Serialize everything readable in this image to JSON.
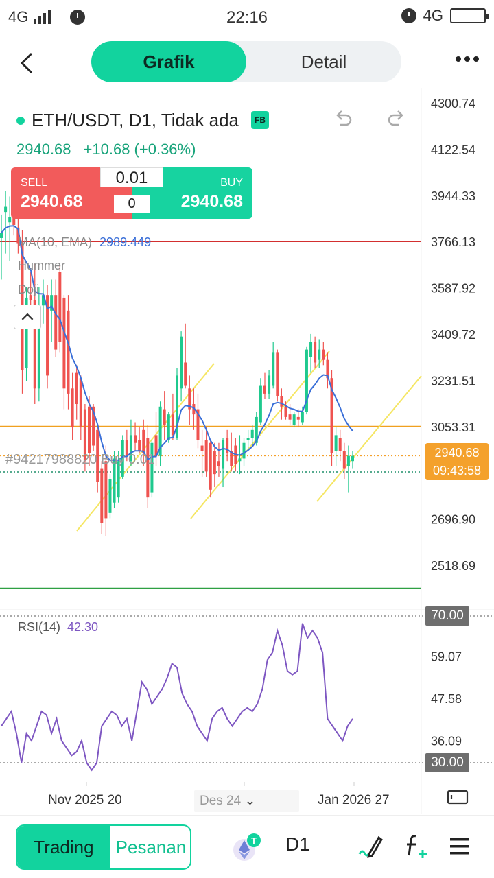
{
  "status_bar": {
    "network_left": "4G",
    "time": "22:16",
    "network_right": "4G"
  },
  "nav": {
    "tab_active": "Grafik",
    "tab_inactive": "Detail"
  },
  "symbol": {
    "title": "ETH/USDT, D1, Tidak ada",
    "badge": "FB",
    "price": "2940.68",
    "change": "+10.68 (+0.36%)"
  },
  "trade_panel": {
    "sell_label": "SELL",
    "sell_price": "2940.68",
    "buy_label": "BUY",
    "buy_price": "2940.68",
    "lot": "0.01",
    "spread": "0"
  },
  "indicators": {
    "ma_label": "MA(10, EMA)",
    "ma_value": "2989.449",
    "pattern1": "Hummer",
    "pattern2": "Doji"
  },
  "order_line": {
    "text": "#94217988820 Buy 0.01"
  },
  "price_axis": [
    "4300.74",
    "4122.54",
    "3944.33",
    "3766.13",
    "3587.92",
    "3409.72",
    "3231.51",
    "3053.31",
    "2696.90",
    "2518.69"
  ],
  "current_price_label": {
    "price": "2940.68",
    "countdown": "09:43:58"
  },
  "rsi": {
    "label": "RSI(14)",
    "value": "42.30",
    "axis": [
      "59.07",
      "47.58",
      "36.09"
    ],
    "upper": "70.00",
    "lower": "30.00"
  },
  "x_axis": {
    "label1": "Nov 2025 20",
    "label2": "Des 24",
    "label3": "Jan 2026 27"
  },
  "bottom_bar": {
    "tab_trading": "Trading",
    "tab_orders": "Pesanan",
    "timeframe": "D1"
  },
  "colors": {
    "accent": "#12d39e",
    "sell": "#f25b5b",
    "buy": "#17d3a0",
    "bull": "#1fc98e",
    "bear": "#ef5350",
    "ma": "#3a6fd8",
    "rsi": "#7e57c2",
    "price_tag": "#f4a12c",
    "resistance": "#f0a020",
    "red_line": "#d32f2f",
    "green_line": "#2ea043",
    "channel": "#f5e663"
  },
  "chart_data": {
    "type": "candlestick",
    "instrument": "ETH/USDT",
    "timeframe": "D1",
    "price_range": [
      2430,
      4340
    ],
    "horizontal_lines": [
      3766.13,
      3053.31,
      2940.68,
      2430
    ],
    "candles": [
      {
        "o": 3780,
        "h": 3870,
        "l": 3620,
        "c": 3800
      },
      {
        "o": 3880,
        "h": 3960,
        "l": 3720,
        "c": 3900
      },
      {
        "o": 3840,
        "h": 3940,
        "l": 3690,
        "c": 3860
      },
      {
        "o": 3860,
        "h": 3930,
        "l": 3790,
        "c": 3830
      },
      {
        "o": 3820,
        "h": 3880,
        "l": 3720,
        "c": 3760
      },
      {
        "o": 3760,
        "h": 3810,
        "l": 3180,
        "c": 3270
      },
      {
        "o": 3280,
        "h": 3590,
        "l": 3230,
        "c": 3550
      },
      {
        "o": 3560,
        "h": 3650,
        "l": 3520,
        "c": 3540
      },
      {
        "o": 3540,
        "h": 3680,
        "l": 3140,
        "c": 3200
      },
      {
        "o": 3200,
        "h": 3590,
        "l": 3150,
        "c": 3520
      },
      {
        "o": 3520,
        "h": 3620,
        "l": 3450,
        "c": 3560
      },
      {
        "o": 3560,
        "h": 3600,
        "l": 3200,
        "c": 3250
      },
      {
        "o": 3500,
        "h": 3620,
        "l": 3380,
        "c": 3560
      },
      {
        "o": 3560,
        "h": 3620,
        "l": 3320,
        "c": 3350
      },
      {
        "o": 3650,
        "h": 3680,
        "l": 3340,
        "c": 3380
      },
      {
        "o": 3550,
        "h": 3560,
        "l": 3120,
        "c": 3200
      },
      {
        "o": 3500,
        "h": 3560,
        "l": 3120,
        "c": 3180
      },
      {
        "o": 3200,
        "h": 3260,
        "l": 3000,
        "c": 3050
      },
      {
        "o": 3260,
        "h": 3290,
        "l": 3080,
        "c": 3140
      },
      {
        "o": 3240,
        "h": 3250,
        "l": 3000,
        "c": 3050
      },
      {
        "o": 3120,
        "h": 3140,
        "l": 2880,
        "c": 2920
      },
      {
        "o": 3130,
        "h": 3170,
        "l": 2900,
        "c": 2950
      },
      {
        "o": 3130,
        "h": 3140,
        "l": 2960,
        "c": 2980
      },
      {
        "o": 3040,
        "h": 3060,
        "l": 2800,
        "c": 2840
      },
      {
        "o": 2890,
        "h": 2920,
        "l": 2640,
        "c": 2680
      },
      {
        "o": 2920,
        "h": 2980,
        "l": 2630,
        "c": 2700
      },
      {
        "o": 2720,
        "h": 2870,
        "l": 2700,
        "c": 2850
      },
      {
        "o": 2760,
        "h": 2960,
        "l": 2740,
        "c": 2930
      },
      {
        "o": 2780,
        "h": 2960,
        "l": 2760,
        "c": 2920
      },
      {
        "o": 2860,
        "h": 3020,
        "l": 2850,
        "c": 3000
      },
      {
        "o": 3000,
        "h": 3040,
        "l": 2920,
        "c": 2940
      },
      {
        "o": 2920,
        "h": 3080,
        "l": 2900,
        "c": 3020
      },
      {
        "o": 3020,
        "h": 3070,
        "l": 2960,
        "c": 2990
      },
      {
        "o": 3000,
        "h": 3050,
        "l": 2950,
        "c": 2960
      },
      {
        "o": 3040,
        "h": 3080,
        "l": 2900,
        "c": 2950
      },
      {
        "o": 3010,
        "h": 3060,
        "l": 2740,
        "c": 2780
      },
      {
        "o": 2800,
        "h": 3000,
        "l": 2780,
        "c": 2990
      },
      {
        "o": 3020,
        "h": 3110,
        "l": 2900,
        "c": 2940
      },
      {
        "o": 2940,
        "h": 3150,
        "l": 2900,
        "c": 3130
      },
      {
        "o": 3120,
        "h": 3190,
        "l": 3000,
        "c": 3060
      },
      {
        "o": 3000,
        "h": 3110,
        "l": 2990,
        "c": 3100
      },
      {
        "o": 3100,
        "h": 3180,
        "l": 3000,
        "c": 3020
      },
      {
        "o": 3010,
        "h": 3280,
        "l": 3000,
        "c": 3250
      },
      {
        "o": 3200,
        "h": 3420,
        "l": 3150,
        "c": 3400
      },
      {
        "o": 3300,
        "h": 3450,
        "l": 3200,
        "c": 3210
      },
      {
        "o": 3200,
        "h": 3250,
        "l": 3060,
        "c": 3120
      },
      {
        "o": 3140,
        "h": 3200,
        "l": 3040,
        "c": 3100
      },
      {
        "o": 3120,
        "h": 3180,
        "l": 2970,
        "c": 3000
      },
      {
        "o": 2980,
        "h": 3040,
        "l": 2860,
        "c": 2960
      },
      {
        "o": 3000,
        "h": 3050,
        "l": 2860,
        "c": 2880
      },
      {
        "o": 2990,
        "h": 3000,
        "l": 2780,
        "c": 2810
      },
      {
        "o": 2960,
        "h": 2990,
        "l": 2820,
        "c": 2870
      },
      {
        "o": 2920,
        "h": 2990,
        "l": 2860,
        "c": 2900
      },
      {
        "o": 2890,
        "h": 3010,
        "l": 2820,
        "c": 3000
      },
      {
        "o": 3010,
        "h": 3040,
        "l": 2920,
        "c": 2950
      },
      {
        "o": 2960,
        "h": 3030,
        "l": 2880,
        "c": 2900
      },
      {
        "o": 2980,
        "h": 3010,
        "l": 2880,
        "c": 2910
      },
      {
        "o": 2920,
        "h": 3020,
        "l": 2870,
        "c": 2930
      },
      {
        "o": 2930,
        "h": 3010,
        "l": 2900,
        "c": 2990
      },
      {
        "o": 3000,
        "h": 3040,
        "l": 2960,
        "c": 3010
      },
      {
        "o": 3010,
        "h": 3060,
        "l": 2980,
        "c": 3040
      },
      {
        "o": 2990,
        "h": 3110,
        "l": 2980,
        "c": 3090
      },
      {
        "o": 3070,
        "h": 3240,
        "l": 3060,
        "c": 3210
      },
      {
        "o": 3210,
        "h": 3260,
        "l": 3160,
        "c": 3180
      },
      {
        "o": 3180,
        "h": 3270,
        "l": 3160,
        "c": 3250
      },
      {
        "o": 3210,
        "h": 3380,
        "l": 3200,
        "c": 3340
      },
      {
        "o": 3340,
        "h": 3350,
        "l": 3150,
        "c": 3170
      },
      {
        "o": 3170,
        "h": 3200,
        "l": 3080,
        "c": 3130
      },
      {
        "o": 3130,
        "h": 3150,
        "l": 3080,
        "c": 3090
      },
      {
        "o": 3100,
        "h": 3140,
        "l": 3060,
        "c": 3080
      },
      {
        "o": 3060,
        "h": 3110,
        "l": 3050,
        "c": 3100
      },
      {
        "o": 3090,
        "h": 3120,
        "l": 3050,
        "c": 3080
      },
      {
        "o": 3070,
        "h": 3130,
        "l": 3060,
        "c": 3110
      },
      {
        "o": 3110,
        "h": 3360,
        "l": 3100,
        "c": 3350
      },
      {
        "o": 3320,
        "h": 3410,
        "l": 3260,
        "c": 3380
      },
      {
        "o": 3380,
        "h": 3400,
        "l": 3280,
        "c": 3300
      },
      {
        "o": 3310,
        "h": 3390,
        "l": 3280,
        "c": 3350
      },
      {
        "o": 3350,
        "h": 3380,
        "l": 3290,
        "c": 3310
      },
      {
        "o": 3310,
        "h": 3340,
        "l": 3200,
        "c": 3240
      },
      {
        "o": 3240,
        "h": 3270,
        "l": 2900,
        "c": 2950
      },
      {
        "o": 2960,
        "h": 3050,
        "l": 2900,
        "c": 3020
      },
      {
        "o": 3010,
        "h": 3040,
        "l": 2920,
        "c": 2960
      },
      {
        "o": 2960,
        "h": 2990,
        "l": 2850,
        "c": 2890
      },
      {
        "o": 2900,
        "h": 2980,
        "l": 2800,
        "c": 2940
      },
      {
        "o": 2920,
        "h": 2960,
        "l": 2890,
        "c": 2940
      }
    ],
    "rsi_series": [
      40,
      42,
      44,
      38,
      30,
      38,
      36,
      40,
      44,
      43,
      38,
      42,
      36,
      34,
      32,
      33,
      36,
      30,
      28,
      30,
      40,
      42,
      44,
      43,
      40,
      42,
      36,
      44,
      52,
      50,
      46,
      48,
      50,
      53,
      57,
      56,
      49,
      46,
      44,
      40,
      38,
      36,
      42,
      44,
      45,
      42,
      40,
      42,
      44,
      45,
      44,
      46,
      50,
      58,
      60,
      66,
      62,
      55,
      54,
      55,
      68,
      64,
      66,
      64,
      60,
      42,
      40,
      38,
      36,
      40,
      42
    ]
  }
}
